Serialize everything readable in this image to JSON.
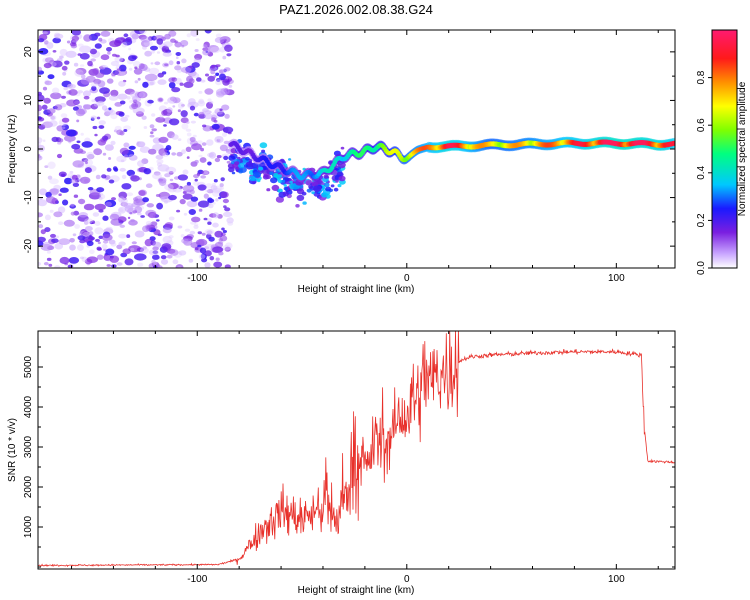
{
  "title": "PAZ1.2026.002.08.38.G24",
  "colors": {
    "snr_line": "#e8302a",
    "scatter_purple": "#7a1fe0",
    "frame": "#000000"
  },
  "chart_data": [
    {
      "type": "heatmap",
      "name": "spectrogram",
      "xlabel": "Height of straight line (km)",
      "ylabel": "Frequency (Hz)",
      "xlim": [
        -176,
        128
      ],
      "ylim": [
        -24.5,
        24.5
      ],
      "xticks": [
        -100,
        0,
        100
      ],
      "xtick_labels": [
        "-100",
        "0",
        "100"
      ],
      "yticks": [
        -20,
        -10,
        0,
        10,
        20
      ],
      "ytick_labels": [
        "-20",
        "-10",
        "0",
        "10",
        "20"
      ],
      "colorbar": {
        "label": "Normalized spectral amplitude",
        "range": [
          0,
          1
        ],
        "ticks": [
          0.0,
          0.2,
          0.4,
          0.6,
          0.8
        ],
        "tick_labels": [
          "0.0",
          "0.2",
          "0.4",
          "0.6",
          "0.8"
        ]
      },
      "ridge": {
        "height_km": [
          -84,
          -70,
          -60,
          -50,
          -40,
          -30,
          -20,
          -15,
          -10,
          -5,
          0,
          5,
          10,
          20,
          40,
          60,
          80,
          100,
          120,
          128
        ],
        "frequency_hz": [
          1.0,
          -2.0,
          -4.0,
          -5.5,
          -5.0,
          -1.5,
          -0.5,
          0.5,
          0.0,
          -1.0,
          -2.0,
          -0.5,
          0.5,
          0.5,
          0.8,
          1.0,
          1.2,
          1.2,
          1.0,
          1.0
        ],
        "amplitude": [
          0.15,
          0.2,
          0.25,
          0.3,
          0.35,
          0.4,
          0.45,
          0.5,
          0.55,
          0.6,
          0.65,
          0.7,
          0.75,
          0.85,
          0.65,
          0.7,
          0.8,
          0.9,
          0.85,
          0.8
        ]
      },
      "noise_region_km": [
        -176,
        -84
      ],
      "spread_region_km": [
        -84,
        -30
      ]
    },
    {
      "type": "line",
      "name": "snr",
      "xlabel": "Height of straight line (km)",
      "ylabel": "SNR (10 * v/v)",
      "xlim": [
        -176,
        128
      ],
      "ylim": [
        -50,
        5900
      ],
      "xticks": [
        -100,
        0,
        100
      ],
      "xtick_labels": [
        "-100",
        "0",
        "100"
      ],
      "yticks": [
        1000,
        2000,
        3000,
        4000,
        5000
      ],
      "ytick_labels": [
        "1000",
        "2000",
        "3000",
        "4000",
        "5000"
      ],
      "envelope": {
        "x": [
          -176,
          -90,
          -80,
          -70,
          -60,
          -50,
          -40,
          -35,
          -30,
          -25,
          -20,
          -15,
          -10,
          -5,
          0,
          5,
          10,
          15,
          20,
          25,
          30,
          40,
          60,
          80,
          100,
          112,
          113,
          115,
          128
        ],
        "y": [
          40,
          60,
          200,
          900,
          1400,
          1200,
          1500,
          1100,
          1600,
          2800,
          2400,
          3200,
          3000,
          3600,
          3800,
          4200,
          4600,
          4800,
          4900,
          5150,
          5250,
          5300,
          5350,
          5380,
          5380,
          5300,
          3700,
          2650,
          2620
        ]
      }
    }
  ]
}
